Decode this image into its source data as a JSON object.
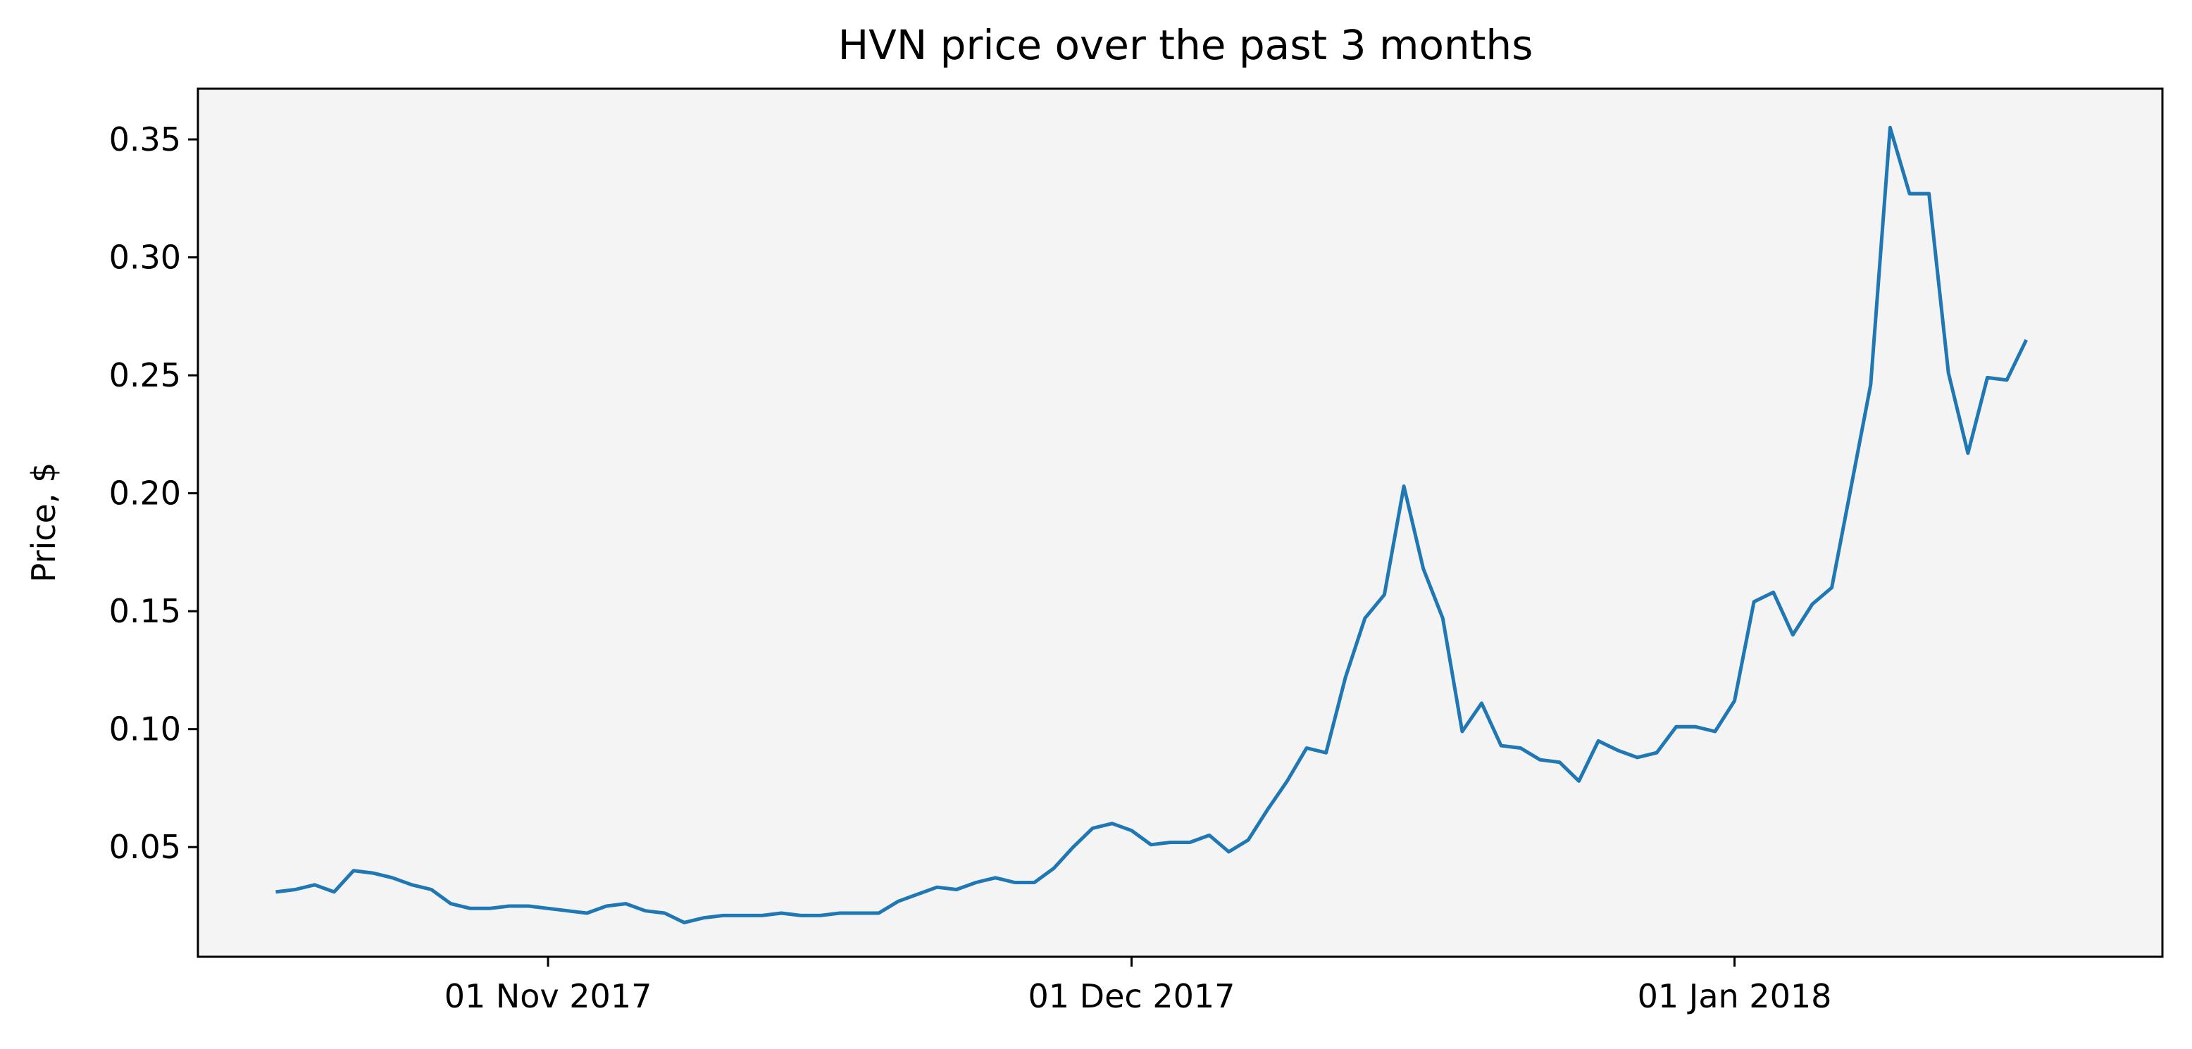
{
  "chart_data": {
    "type": "line",
    "title": "HVN price over the past 3 months",
    "xlabel": "",
    "ylabel": "Price, $",
    "background": "#f4f4f4",
    "line_color": "#1f77b4",
    "grid": false,
    "x_start": "2017-10-18",
    "x_step_days": 1,
    "x_ticks": [
      {
        "date": "2017-11-01",
        "label": "01 Nov 2017"
      },
      {
        "date": "2017-12-01",
        "label": "01 Dec 2017"
      },
      {
        "date": "2018-01-01",
        "label": "01 Jan 2018"
      }
    ],
    "y_ticks": [
      {
        "value": 0.05,
        "label": "0.05"
      },
      {
        "value": 0.1,
        "label": "0.10"
      },
      {
        "value": 0.15,
        "label": "0.15"
      },
      {
        "value": 0.2,
        "label": "0.20"
      },
      {
        "value": 0.25,
        "label": "0.25"
      },
      {
        "value": 0.3,
        "label": "0.30"
      },
      {
        "value": 0.35,
        "label": "0.35"
      }
    ],
    "xlim": [
      "2017-10-14",
      "2018-01-23"
    ],
    "ylim": [
      0.0035,
      0.3715
    ],
    "series": [
      {
        "values": [
          0.031,
          0.032,
          0.034,
          0.031,
          0.04,
          0.039,
          0.037,
          0.034,
          0.032,
          0.026,
          0.024,
          0.024,
          0.025,
          0.025,
          0.024,
          0.023,
          0.022,
          0.025,
          0.026,
          0.023,
          0.022,
          0.018,
          0.02,
          0.021,
          0.021,
          0.021,
          0.022,
          0.021,
          0.021,
          0.022,
          0.022,
          0.022,
          0.027,
          0.03,
          0.033,
          0.032,
          0.035,
          0.037,
          0.035,
          0.035,
          0.041,
          0.05,
          0.058,
          0.06,
          0.057,
          0.051,
          0.052,
          0.052,
          0.055,
          0.048,
          0.053,
          0.066,
          0.078,
          0.092,
          0.09,
          0.122,
          0.147,
          0.157,
          0.203,
          0.168,
          0.147,
          0.099,
          0.111,
          0.093,
          0.092,
          0.087,
          0.086,
          0.078,
          0.095,
          0.091,
          0.088,
          0.09,
          0.101,
          0.101,
          0.099,
          0.112,
          0.154,
          0.158,
          0.14,
          0.153,
          0.16,
          0.203,
          0.246,
          0.355,
          0.327,
          0.327,
          0.251,
          0.217,
          0.249,
          0.248,
          0.265
        ]
      }
    ]
  }
}
